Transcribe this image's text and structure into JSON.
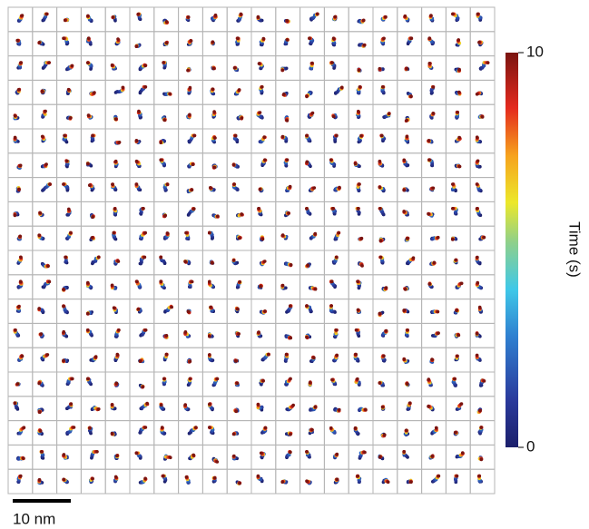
{
  "colorbar": {
    "label": "Time (s)",
    "lim": [
      0,
      10
    ],
    "ticks": [
      0,
      10
    ]
  },
  "scale_bar": {
    "label": "10 nm"
  }
}
